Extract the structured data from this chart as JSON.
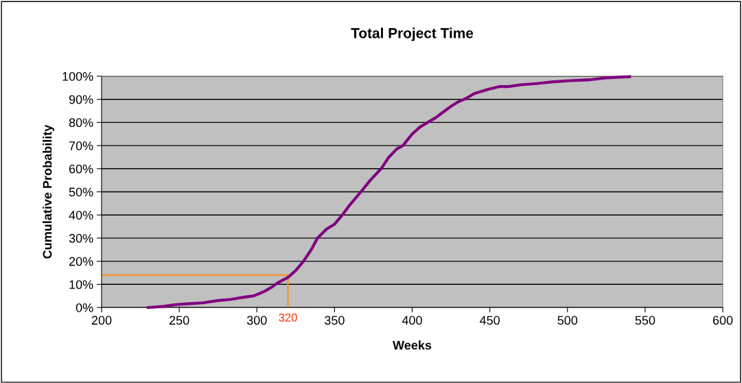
{
  "chart_data": {
    "type": "line",
    "title": "Total Project Time",
    "xlabel": "Weeks",
    "ylabel": "Cumulative Probability",
    "x": [
      230,
      240,
      247,
      255,
      265,
      275,
      283,
      292,
      298,
      305,
      310,
      313,
      320,
      325,
      330,
      335,
      339,
      345,
      350,
      355,
      360,
      367,
      373,
      380,
      385,
      390,
      394,
      397,
      400,
      405,
      410,
      415,
      420,
      425,
      430,
      435,
      440,
      450,
      456,
      462,
      470,
      480,
      490,
      500,
      515,
      525,
      540
    ],
    "series": [
      {
        "color": "#800080",
        "values": [
          0,
          0.5,
          1.2,
          1.6,
          2,
          3,
          3.5,
          4.5,
          5,
          7,
          9,
          10.5,
          13,
          16,
          20,
          25,
          30,
          34,
          36,
          40,
          44.5,
          50,
          55,
          60,
          65,
          68.5,
          70,
          72.5,
          75,
          78,
          80,
          82,
          84.5,
          87,
          89,
          90.5,
          92.5,
          94.5,
          95.5,
          95.5,
          96.3,
          96.8,
          97.5,
          98,
          98.5,
          99.3,
          99.8
        ]
      }
    ],
    "ref_lines": [
      {
        "axis": "x",
        "value": 320,
        "color": "#ff8c1a"
      },
      {
        "axis": "y",
        "value": 14,
        "color": "#ff8c1a"
      }
    ],
    "xlim": [
      200,
      600
    ],
    "xticks": [
      200,
      250,
      300,
      350,
      400,
      450,
      500,
      550,
      600
    ],
    "ylim": [
      0,
      100
    ],
    "yticks": [
      {
        "value": 0,
        "label": "0%"
      },
      {
        "value": 10,
        "label": "10%"
      },
      {
        "value": 20,
        "label": "20%"
      },
      {
        "value": 30,
        "label": "30%"
      },
      {
        "value": 40,
        "label": "40%"
      },
      {
        "value": 50,
        "label": "50%"
      },
      {
        "value": 60,
        "label": "60%"
      },
      {
        "value": 70,
        "label": "70%"
      },
      {
        "value": 80,
        "label": "80%"
      },
      {
        "value": 90,
        "label": "90%"
      },
      {
        "value": 100,
        "label": "100%"
      }
    ],
    "grid": "y",
    "legend": false,
    "marker": "none",
    "line_style": "solid",
    "annotations": [
      {
        "text": "320",
        "x": 320,
        "y": 0
      }
    ]
  }
}
